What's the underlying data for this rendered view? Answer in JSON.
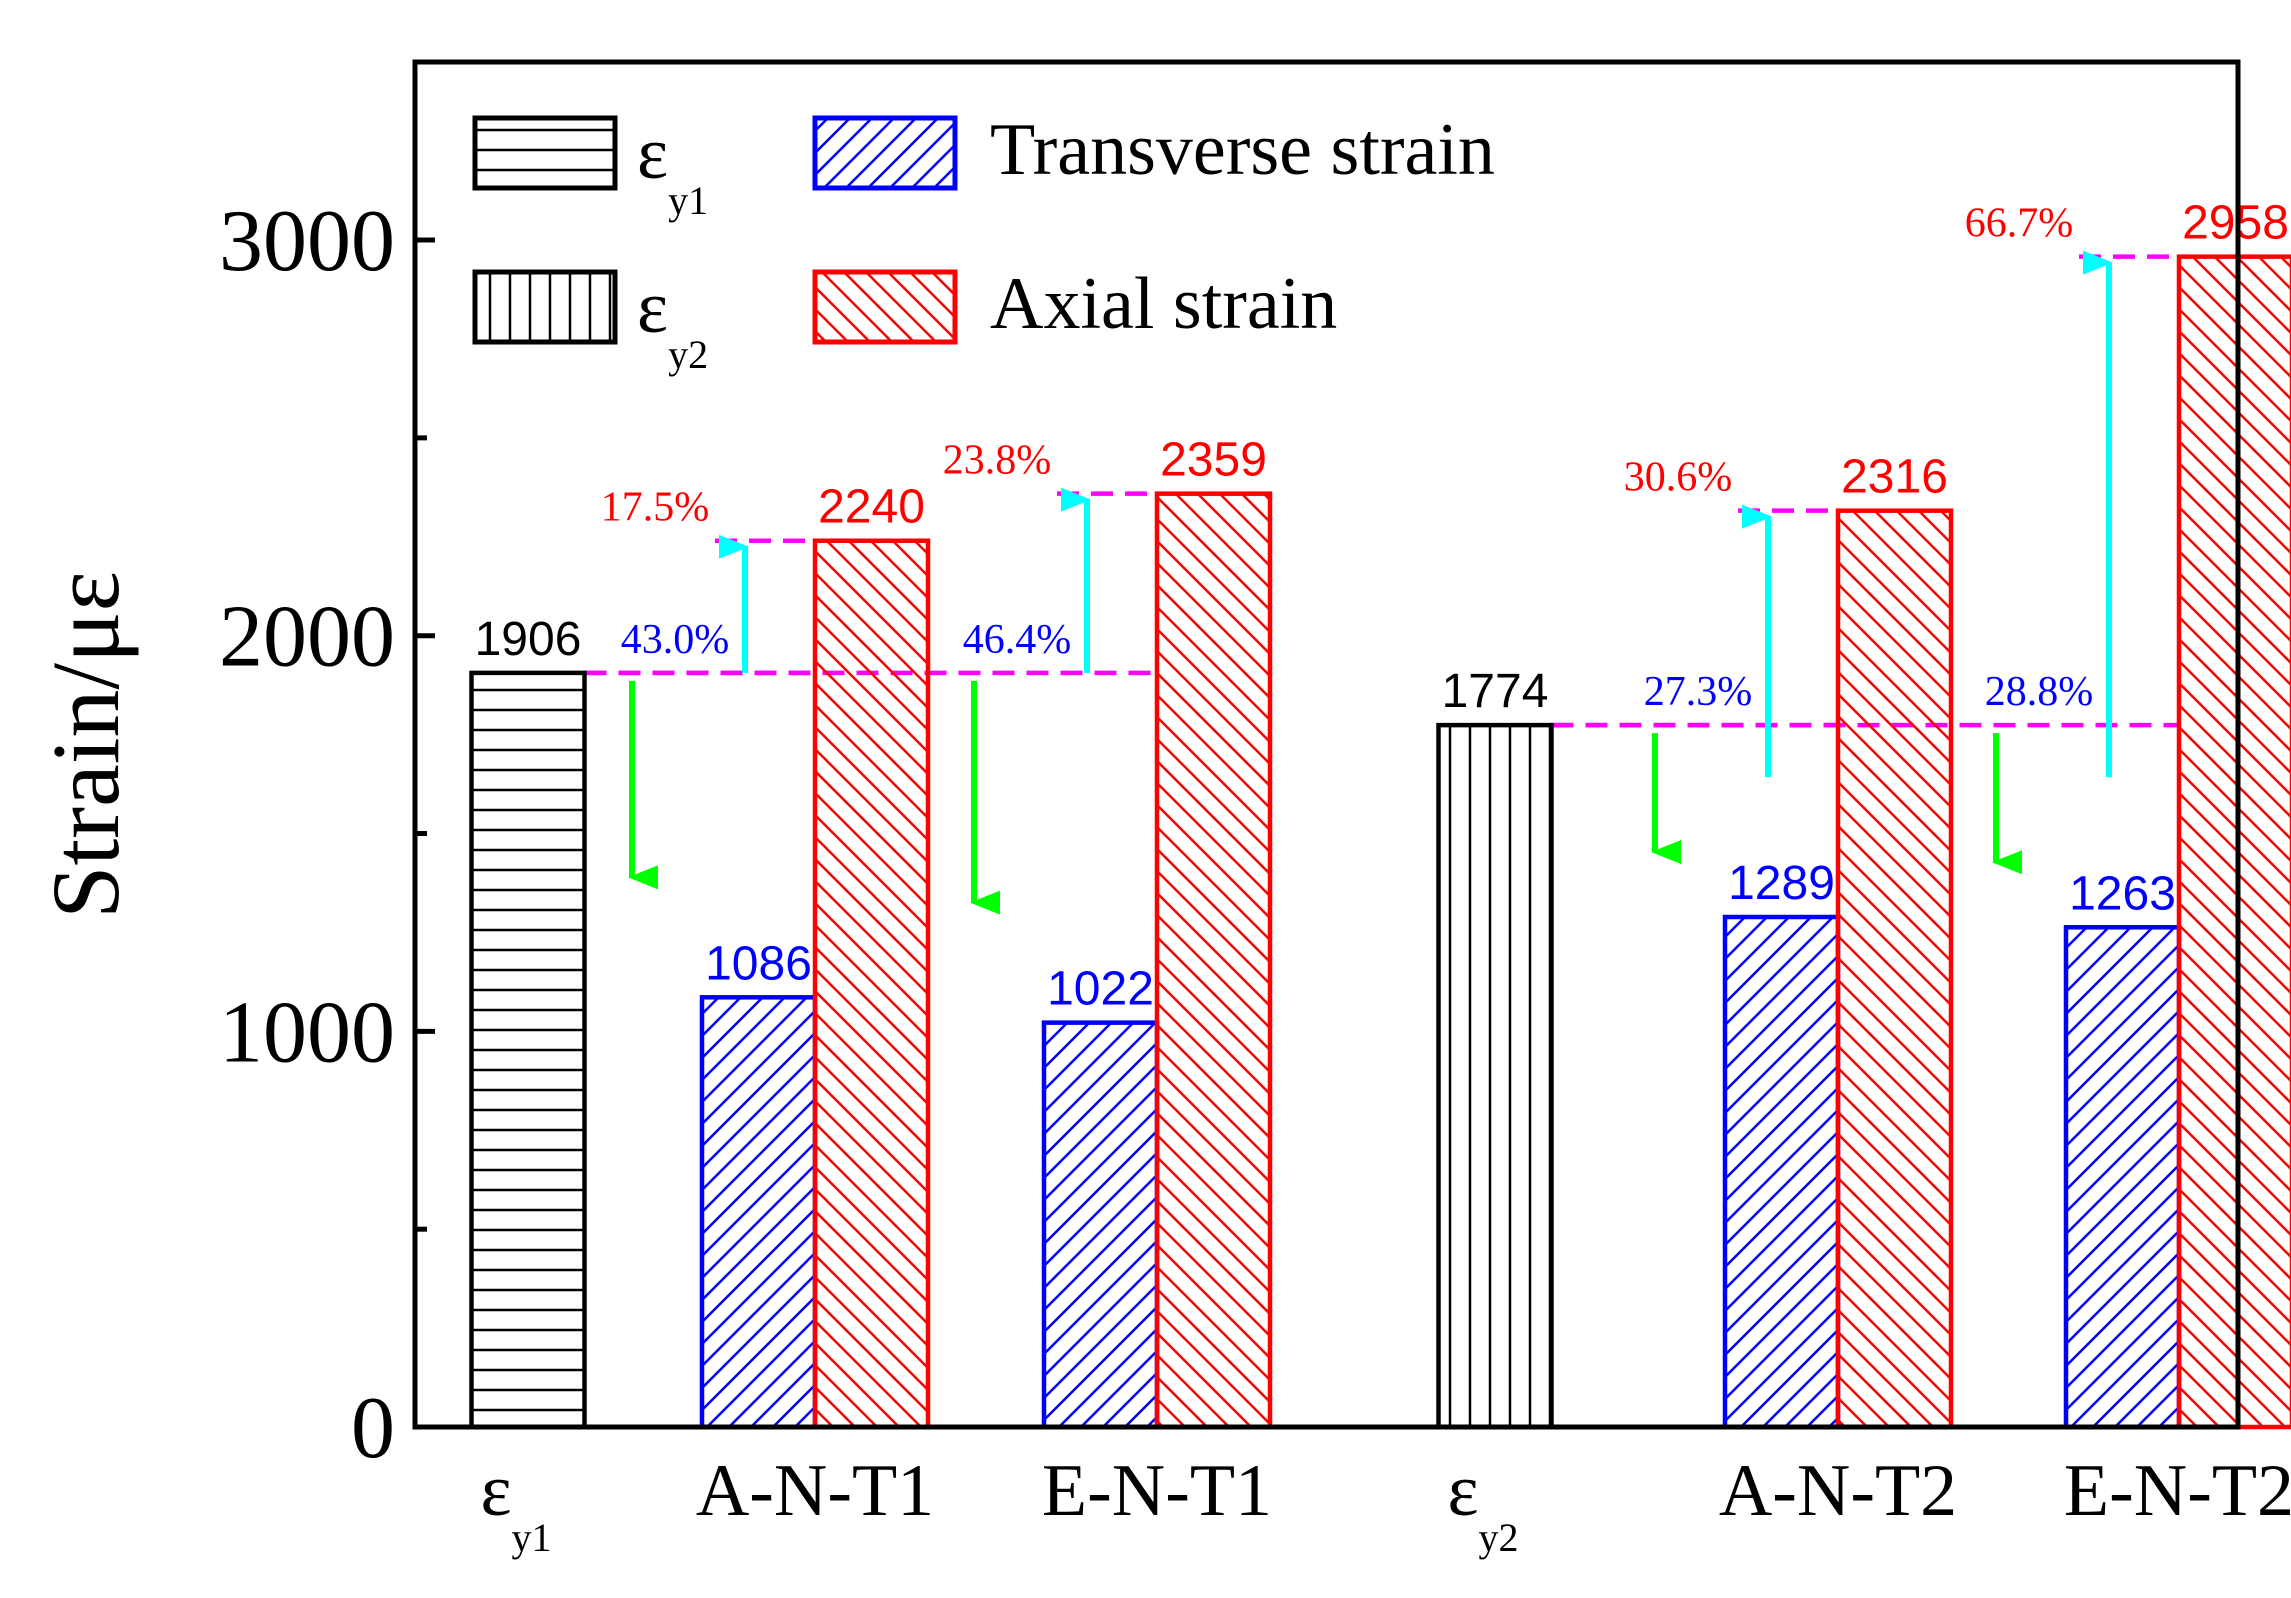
{
  "chart_data": {
    "type": "bar",
    "ylabel": "Strain/με",
    "ylim": [
      0,
      3450
    ],
    "y_ticks": [
      0,
      1000,
      2000,
      3000
    ],
    "y_tick_labels": [
      "0",
      "1000",
      "2000",
      "3000"
    ],
    "y_minor_ticks": [
      500,
      1500,
      2500
    ],
    "categories": [
      {
        "main": "ε",
        "sub": "y1"
      },
      {
        "main": "A-N-T1",
        "sub": ""
      },
      {
        "main": "E-N-T1",
        "sub": ""
      },
      {
        "main": "ε",
        "sub": "y2"
      },
      {
        "main": "A-N-T2",
        "sub": ""
      },
      {
        "main": "E-N-T2",
        "sub": ""
      }
    ],
    "series": [
      {
        "name": "ε",
        "sub": "y1",
        "pattern": "horizontal",
        "color": "#000000",
        "values": [
          1906,
          null,
          null,
          null,
          null,
          null
        ],
        "labels": [
          "1906",
          "",
          "",
          "",
          "",
          ""
        ]
      },
      {
        "name": "ε",
        "sub": "y2",
        "pattern": "vertical",
        "color": "#000000",
        "values": [
          null,
          null,
          null,
          1774,
          null,
          null
        ],
        "labels": [
          "",
          "",
          "",
          "1774",
          "",
          ""
        ]
      },
      {
        "name": "Transverse strain",
        "sub": "",
        "pattern": "forward-diagonal",
        "color": "#0000ff",
        "values": [
          null,
          1086,
          1022,
          null,
          1289,
          1263
        ],
        "labels": [
          "",
          "1086",
          "1022",
          "",
          "1289",
          "1263"
        ]
      },
      {
        "name": "Axial strain",
        "sub": "",
        "pattern": "back-diagonal",
        "color": "#ff0000",
        "values": [
          null,
          2240,
          2359,
          null,
          2316,
          2958
        ],
        "labels": [
          "",
          "2240",
          "2359",
          "",
          "2316",
          "2958"
        ]
      }
    ],
    "annotations": [
      {
        "category": 1,
        "reference": 1906,
        "transverse": 1086,
        "axial": 2240,
        "decrease_label": "43.0%",
        "increase_label": "17.5%"
      },
      {
        "category": 2,
        "reference": 1906,
        "transverse": 1022,
        "axial": 2359,
        "decrease_label": "46.4%",
        "increase_label": "23.8%"
      },
      {
        "category": 4,
        "reference": 1774,
        "transverse": 1289,
        "axial": 2316,
        "decrease_label": "27.3%",
        "increase_label": "30.6%"
      },
      {
        "category": 5,
        "reference": 1774,
        "transverse": 1263,
        "axial": 2958,
        "decrease_label": "28.8%",
        "increase_label": "66.7%"
      }
    ],
    "colors": {
      "reference_line": "#ff00ff",
      "increase_arrow": "#00ffff",
      "decrease_arrow": "#00ff00",
      "percent_decrease_text": "#0000ff",
      "percent_increase_text": "#ff0000"
    }
  }
}
